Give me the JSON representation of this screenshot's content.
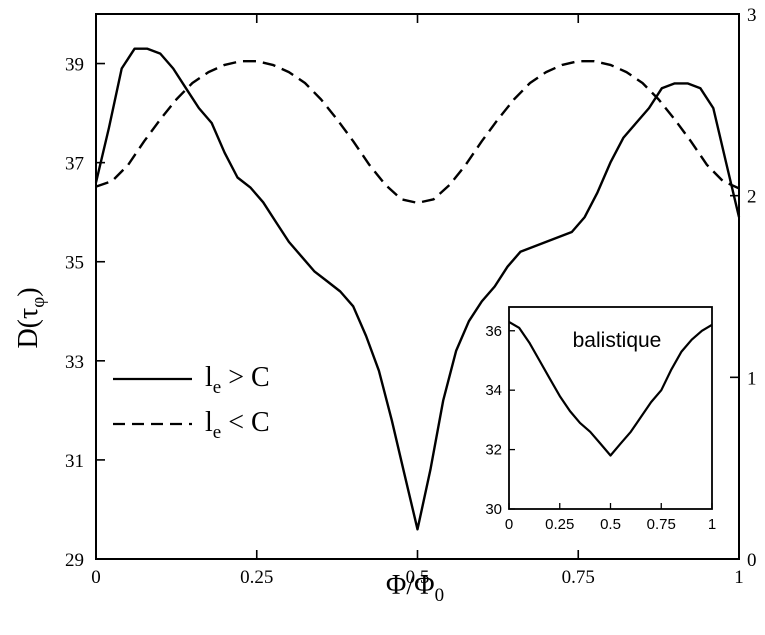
{
  "chart_data": {
    "type": "line",
    "title": "",
    "xlabel": "Φ/Φ",
    "xlabel_sub": "0",
    "ylabel": "D(τ",
    "ylabel_sub": "φ",
    "ylabel_close": ")",
    "xlim": [
      0,
      1
    ],
    "ylim": [
      29,
      40
    ],
    "y2lim": [
      0,
      3
    ],
    "x_ticks": [
      {
        "v": 0,
        "label": "0"
      },
      {
        "v": 0.25,
        "label": "0.25"
      },
      {
        "v": 0.5,
        "label": "0.5"
      },
      {
        "v": 0.75,
        "label": "0.75"
      },
      {
        "v": 1,
        "label": "1"
      }
    ],
    "y_ticks": [
      {
        "v": 29,
        "label": "29"
      },
      {
        "v": 31,
        "label": "31"
      },
      {
        "v": 33,
        "label": "33"
      },
      {
        "v": 35,
        "label": "35"
      },
      {
        "v": 37,
        "label": "37"
      },
      {
        "v": 39,
        "label": "39"
      }
    ],
    "y2_ticks": [
      {
        "v": 0,
        "label": "0"
      },
      {
        "v": 1,
        "label": "1"
      },
      {
        "v": 2,
        "label": "2"
      },
      {
        "v": 3,
        "label": "3"
      }
    ],
    "legend_position": "left",
    "series": [
      {
        "name": "l > C",
        "name_main": "l",
        "name_sub": "e",
        "name_rest": " > C",
        "style": "solid",
        "axis": "left",
        "x": [
          0,
          0.02,
          0.04,
          0.06,
          0.08,
          0.1,
          0.12,
          0.14,
          0.16,
          0.18,
          0.2,
          0.22,
          0.24,
          0.26,
          0.28,
          0.3,
          0.32,
          0.34,
          0.36,
          0.38,
          0.4,
          0.42,
          0.44,
          0.46,
          0.48,
          0.5,
          0.52,
          0.54,
          0.56,
          0.58,
          0.6,
          0.62,
          0.64,
          0.66,
          0.7,
          0.74,
          0.76,
          0.78,
          0.8,
          0.82,
          0.84,
          0.86,
          0.88,
          0.9,
          0.92,
          0.94,
          0.96,
          0.98,
          1.0
        ],
        "y": [
          36.6,
          37.7,
          38.9,
          39.3,
          39.3,
          39.2,
          38.9,
          38.5,
          38.1,
          37.8,
          37.2,
          36.7,
          36.5,
          36.2,
          35.8,
          35.4,
          35.1,
          34.8,
          34.6,
          34.4,
          34.1,
          33.5,
          32.8,
          31.8,
          30.7,
          29.6,
          30.8,
          32.2,
          33.2,
          33.8,
          34.2,
          34.5,
          34.9,
          35.2,
          35.4,
          35.6,
          35.9,
          36.4,
          37.0,
          37.5,
          37.8,
          38.1,
          38.5,
          38.6,
          38.6,
          38.5,
          38.1,
          37.0,
          35.9
        ]
      },
      {
        "name": "l < C",
        "name_main": "l",
        "name_sub": "e",
        "name_rest": " < C",
        "style": "dashed",
        "axis": "right",
        "x": [
          0,
          0.025,
          0.05,
          0.075,
          0.1,
          0.125,
          0.15,
          0.175,
          0.2,
          0.225,
          0.25,
          0.275,
          0.3,
          0.325,
          0.35,
          0.375,
          0.4,
          0.425,
          0.45,
          0.475,
          0.5,
          0.525,
          0.55,
          0.575,
          0.6,
          0.625,
          0.65,
          0.675,
          0.7,
          0.725,
          0.75,
          0.775,
          0.8,
          0.825,
          0.85,
          0.875,
          0.9,
          0.925,
          0.95,
          0.975,
          1.0
        ],
        "y": [
          2.05,
          2.08,
          2.17,
          2.3,
          2.42,
          2.53,
          2.62,
          2.68,
          2.72,
          2.74,
          2.74,
          2.72,
          2.68,
          2.62,
          2.53,
          2.42,
          2.3,
          2.17,
          2.06,
          1.98,
          1.96,
          1.98,
          2.06,
          2.17,
          2.3,
          2.42,
          2.53,
          2.62,
          2.68,
          2.72,
          2.74,
          2.74,
          2.72,
          2.68,
          2.62,
          2.53,
          2.42,
          2.3,
          2.17,
          2.08,
          2.04
        ]
      }
    ],
    "inset": {
      "type": "line",
      "label": "balistique",
      "xlim": [
        0,
        1
      ],
      "ylim": [
        30,
        36.8
      ],
      "x_ticks": [
        {
          "v": 0,
          "label": "0"
        },
        {
          "v": 0.25,
          "label": "0.25"
        },
        {
          "v": 0.5,
          "label": "0.5"
        },
        {
          "v": 0.75,
          "label": "0.75"
        },
        {
          "v": 1,
          "label": "1"
        }
      ],
      "y_ticks": [
        {
          "v": 30,
          "label": "30"
        },
        {
          "v": 32,
          "label": "32"
        },
        {
          "v": 34,
          "label": "34"
        },
        {
          "v": 36,
          "label": "36"
        }
      ],
      "series": [
        {
          "style": "solid",
          "x": [
            0,
            0.05,
            0.1,
            0.15,
            0.2,
            0.25,
            0.3,
            0.35,
            0.4,
            0.45,
            0.5,
            0.55,
            0.6,
            0.65,
            0.7,
            0.75,
            0.8,
            0.85,
            0.9,
            0.95,
            1.0
          ],
          "y": [
            36.3,
            36.1,
            35.6,
            35.0,
            34.4,
            33.8,
            33.3,
            32.9,
            32.6,
            32.2,
            31.8,
            32.2,
            32.6,
            33.1,
            33.6,
            34.0,
            34.7,
            35.3,
            35.7,
            36.0,
            36.2
          ]
        }
      ]
    }
  }
}
